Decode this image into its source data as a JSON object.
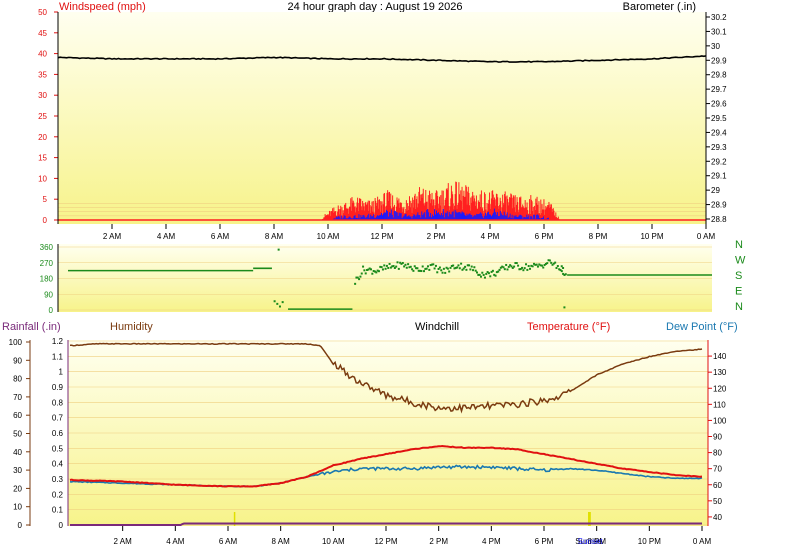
{
  "page_title": "24 hour graph day : August 19 2026",
  "colors": {
    "wind": "#ff2020",
    "gust": "#1a1aff",
    "barometer": "#000000",
    "direction": "#1b8a1b",
    "humidity": "#7a3b10",
    "temperature": "#e01010",
    "dewpoint": "#1a78b0",
    "rainfall": "#7a2a7a",
    "sun_marker": "#e0e000",
    "fill_top": "#fffff0",
    "fill_bottom": "#f7f38a"
  },
  "chart_data": [
    {
      "type": "line",
      "id": "wind-barometer",
      "ylabel_left": "Windspeed (mph)",
      "ylabel_right": "Barometer (.in)",
      "ylim_left": [
        0,
        50
      ],
      "ylim_right": [
        28.8,
        30.2
      ],
      "yticks_left": [
        "0",
        "5",
        "10",
        "15",
        "20",
        "25",
        "30",
        "35",
        "40",
        "45",
        "50"
      ],
      "yticks_right": [
        "28.8",
        "28.9",
        "29",
        "29.1",
        "29.2",
        "29.3",
        "29.4",
        "29.5",
        "29.6",
        "29.7",
        "29.8",
        "29.9",
        "30",
        "30.1",
        "30.2"
      ],
      "xticks": [
        "2 AM",
        "4 AM",
        "6 AM",
        "8 AM",
        "10 AM",
        "12 PM",
        "2 PM",
        "4 PM",
        "6 PM",
        "8 PM",
        "10 PM",
        "0 AM"
      ],
      "series": [
        {
          "name": "Barometer",
          "axis": "right",
          "x": [
            0,
            2,
            4,
            6,
            8,
            10,
            12,
            14,
            16,
            18,
            20,
            22,
            24
          ],
          "values": [
            29.92,
            29.91,
            29.91,
            29.91,
            29.92,
            29.91,
            29.91,
            29.9,
            29.89,
            29.89,
            29.9,
            29.91,
            29.93
          ]
        },
        {
          "name": "Wind speed",
          "axis": "left",
          "x": [
            0,
            9.6,
            10.3,
            11,
            11.6,
            12.2,
            12.8,
            13.4,
            14,
            14.6,
            15.2,
            15.8,
            16.4,
            17,
            17.6,
            18.2,
            18.6,
            24
          ],
          "values": [
            0,
            0,
            3,
            5,
            4,
            6,
            5,
            7,
            6,
            8,
            7,
            6,
            6,
            5,
            5,
            4,
            0,
            0
          ]
        },
        {
          "name": "Gust",
          "axis": "left",
          "x": [
            0,
            9.8,
            10.6,
            11.4,
            12.2,
            13,
            13.8,
            14.6,
            15.4,
            16.2,
            17,
            17.8,
            18.4,
            24
          ],
          "values": [
            0,
            0,
            1,
            1,
            2,
            1,
            2,
            2,
            1,
            2,
            1,
            1,
            0,
            0
          ]
        }
      ]
    },
    {
      "type": "scatter",
      "id": "wind-direction",
      "ylim": [
        0,
        360
      ],
      "yticks": [
        "0",
        "90",
        "180",
        "270",
        "360"
      ],
      "compass_labels": [
        "N",
        "W",
        "S",
        "E",
        "N"
      ],
      "xticks": [],
      "series": [
        {
          "name": "Direction",
          "x": [
            0,
            1,
            2,
            3,
            4,
            5,
            6,
            6.8,
            7.0,
            7.4,
            7.6,
            8.2,
            8.5,
            9,
            9.5,
            10,
            11,
            11.5,
            12,
            12.5,
            13,
            13.5,
            14,
            14.5,
            15,
            15.5,
            16,
            16.5,
            17,
            17.5,
            18,
            18.3,
            18.6,
            19,
            20,
            21,
            22,
            23,
            24
          ],
          "values": [
            225,
            225,
            225,
            225,
            225,
            225,
            225,
            225,
            240,
            240,
            50,
            0,
            0,
            0,
            0,
            0,
            230,
            225,
            245,
            260,
            230,
            250,
            220,
            255,
            240,
            200,
            215,
            255,
            245,
            250,
            275,
            235,
            200,
            200,
            200,
            200,
            200,
            200,
            200
          ]
        }
      ]
    },
    {
      "type": "line",
      "id": "temperature-humidity",
      "ylabel_rainfall": "Rainfall (.in)",
      "ylabel_humidity": "Humidity",
      "ylabel_windchill": "Windchill",
      "ylabel_temperature": "Temperature (°F)",
      "ylabel_dewpoint": "Dew Point (°F)",
      "ylim_humidity": [
        0,
        100
      ],
      "ylim_rainfall": [
        0,
        1.2
      ],
      "ylim_temperature": [
        30,
        150
      ],
      "yticks_humidity": [
        "0",
        "10",
        "20",
        "30",
        "40",
        "50",
        "60",
        "70",
        "80",
        "90",
        "100"
      ],
      "yticks_rainfall": [
        "0",
        "0.1",
        "0.2",
        "0.3",
        "0.4",
        "0.5",
        "0.6",
        "0.7",
        "0.8",
        "0.9",
        "1",
        "1.1",
        "1.2"
      ],
      "yticks_temperature": [
        "40",
        "50",
        "60",
        "70",
        "80",
        "90",
        "100",
        "110",
        "120",
        "130",
        "140"
      ],
      "xticks": [
        "2 AM",
        "4 AM",
        "6 AM",
        "8 AM",
        "10 AM",
        "12 PM",
        "2 PM",
        "4 PM",
        "6 PM",
        "8 PM",
        "10 PM",
        "0 AM"
      ],
      "sun_labels": [
        "6 AM",
        "Sunrise",
        "Sunset"
      ],
      "series": [
        {
          "name": "Humidity",
          "axis": "humidity",
          "x": [
            0,
            1,
            2,
            3,
            4,
            5,
            6,
            7,
            8,
            9,
            9.5,
            10,
            10.5,
            11,
            12,
            13,
            14,
            15,
            16,
            17,
            18,
            18.5,
            19,
            20,
            21,
            22,
            23,
            24
          ],
          "values": [
            98,
            99,
            99,
            99,
            99,
            99,
            99,
            99,
            99,
            99,
            98,
            88,
            83,
            78,
            71,
            67,
            64,
            64,
            65,
            66,
            68,
            70,
            73,
            82,
            88,
            92,
            95,
            96
          ]
        },
        {
          "name": "Temperature",
          "axis": "temperature",
          "x": [
            0,
            2,
            4,
            6,
            7,
            8,
            9,
            10,
            11,
            12,
            13,
            14,
            15,
            16,
            17,
            18,
            19,
            20,
            21,
            22,
            23,
            24
          ],
          "values": [
            63,
            62,
            60,
            59,
            59,
            61,
            65,
            72,
            76,
            79,
            82,
            84,
            83,
            83,
            82,
            79,
            76,
            73,
            70,
            68,
            66,
            65
          ]
        },
        {
          "name": "Dew Point",
          "axis": "temperature",
          "x": [
            0,
            2,
            4,
            6,
            7,
            8,
            9,
            10,
            11,
            12,
            13,
            14,
            15,
            16,
            17,
            18,
            19,
            20,
            21,
            22,
            23,
            24
          ],
          "values": [
            62,
            61,
            60,
            59,
            59,
            61,
            65,
            68,
            70,
            70,
            70,
            71,
            71,
            71,
            70,
            69,
            70,
            69,
            67,
            65,
            64,
            64
          ]
        },
        {
          "name": "Rainfall",
          "axis": "rainfall",
          "x": [
            0,
            4.2,
            4.3,
            24
          ],
          "values": [
            0,
            0,
            0.01,
            0.01
          ]
        }
      ]
    }
  ]
}
